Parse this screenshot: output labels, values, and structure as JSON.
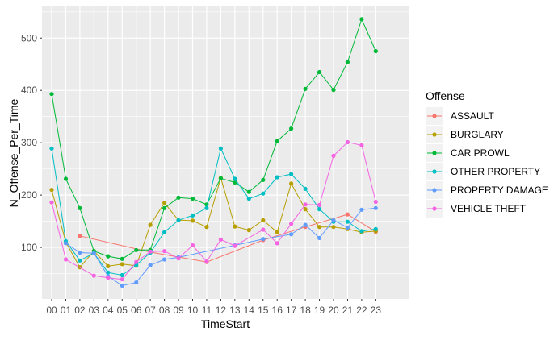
{
  "chart_data": {
    "type": "line",
    "xlabel": "TimeStart",
    "ylabel": "N_Offense_Per_Time",
    "ylim": [
      0,
      560
    ],
    "y_ticks": [
      100,
      200,
      300,
      400,
      500
    ],
    "grid": true,
    "legend_position": "right",
    "legend_title": "Offense",
    "categories": [
      "00",
      "01",
      "02",
      "03",
      "04",
      "05",
      "06",
      "07",
      "08",
      "09",
      "10",
      "11",
      "12",
      "13",
      "14",
      "15",
      "16",
      "17",
      "18",
      "19",
      "20",
      "21",
      "22",
      "23"
    ],
    "series": [
      {
        "name": "ASSAULT",
        "color": "#F8766D",
        "points": [
          {
            "x": "02",
            "y": 122
          },
          {
            "x": "07",
            "y": 91
          },
          {
            "x": "11",
            "y": 72
          },
          {
            "x": "15",
            "y": 114
          },
          {
            "x": "18",
            "y": 139
          },
          {
            "x": "21",
            "y": 163
          },
          {
            "x": "23",
            "y": 130
          }
        ]
      },
      {
        "name": "BURGLARY",
        "color": "#B79F00",
        "values": [
          210,
          110,
          62,
          93,
          64,
          68,
          65,
          143,
          185,
          152,
          151,
          139,
          233,
          140,
          133,
          152,
          129,
          222,
          173,
          139,
          139,
          135,
          129,
          131
        ]
      },
      {
        "name": "CAR PROWL",
        "color": "#00BA38",
        "values": [
          393,
          231,
          175,
          93,
          83,
          78,
          95,
          95,
          175,
          195,
          193,
          182,
          232,
          224,
          206,
          229,
          303,
          327,
          403,
          435,
          401,
          454,
          536,
          475
        ]
      },
      {
        "name": "OTHER PROPERTY",
        "color": "#00BFC4",
        "values": [
          289,
          112,
          75,
          89,
          52,
          47,
          66,
          90,
          129,
          152,
          161,
          175,
          289,
          231,
          193,
          203,
          234,
          240,
          212,
          173,
          149,
          149,
          131,
          135
        ]
      },
      {
        "name": "PROPERTY DAMAGE",
        "color": "#619CFF",
        "points": [
          {
            "x": "01",
            "y": 108
          },
          {
            "x": "02",
            "y": 90
          },
          {
            "x": "03",
            "y": 89
          },
          {
            "x": "04",
            "y": 45
          },
          {
            "x": "05",
            "y": 27
          },
          {
            "x": "06",
            "y": 33
          },
          {
            "x": "07",
            "y": 66
          },
          {
            "x": "08",
            "y": 77
          },
          {
            "x": "09",
            "y": 81
          },
          {
            "x": "13",
            "y": 104
          },
          {
            "x": "15",
            "y": 116
          },
          {
            "x": "17",
            "y": 125
          },
          {
            "x": "18",
            "y": 143
          },
          {
            "x": "19",
            "y": 118
          },
          {
            "x": "20",
            "y": 152
          },
          {
            "x": "21",
            "y": 138
          },
          {
            "x": "22",
            "y": 172
          },
          {
            "x": "23",
            "y": 175
          }
        ]
      },
      {
        "name": "VEHICLE THEFT",
        "color": "#F564E3",
        "points": [
          {
            "x": "00",
            "y": 186
          },
          {
            "x": "01",
            "y": 77
          },
          {
            "x": "03",
            "y": 46
          },
          {
            "x": "04",
            "y": 42
          },
          {
            "x": "05",
            "y": 39
          },
          {
            "x": "06",
            "y": 72
          },
          {
            "x": "07",
            "y": 92
          },
          {
            "x": "08",
            "y": 93
          },
          {
            "x": "09",
            "y": 79
          },
          {
            "x": "10",
            "y": 104
          },
          {
            "x": "11",
            "y": 73
          },
          {
            "x": "12",
            "y": 115
          },
          {
            "x": "13",
            "y": 103
          },
          {
            "x": "15",
            "y": 134
          },
          {
            "x": "16",
            "y": 108
          },
          {
            "x": "17",
            "y": 145
          },
          {
            "x": "18",
            "y": 182
          },
          {
            "x": "19",
            "y": 181
          },
          {
            "x": "20",
            "y": 275
          },
          {
            "x": "21",
            "y": 301
          },
          {
            "x": "22",
            "y": 295
          },
          {
            "x": "23",
            "y": 187
          }
        ]
      }
    ]
  }
}
